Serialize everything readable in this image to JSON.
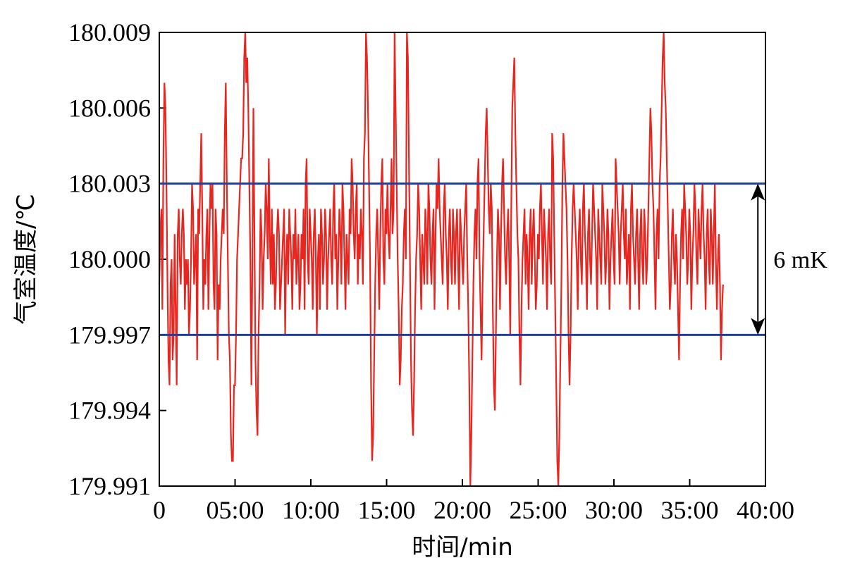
{
  "chart_data": {
    "type": "line",
    "title": "",
    "xlabel": "时间/min",
    "ylabel": "气室温度/℃",
    "xlim": [
      0,
      40
    ],
    "ylim": [
      179.991,
      180.009
    ],
    "x_ticks": [
      0,
      5,
      10,
      15,
      20,
      25,
      30,
      35,
      40
    ],
    "x_tick_labels": [
      "0",
      "05:00",
      "10:00",
      "15:00",
      "20:00",
      "25:00",
      "30:00",
      "35:00",
      "40:00"
    ],
    "y_ticks": [
      179.991,
      179.994,
      179.997,
      180.0,
      180.003,
      180.006,
      180.009
    ],
    "y_tick_labels": [
      "179.991",
      "179.994",
      "179.997",
      "180.000",
      "180.003",
      "180.006",
      "180.009"
    ],
    "grid": false,
    "series": [
      {
        "color": "#e8251f",
        "x_start": 0,
        "x_end": 37.2,
        "values": [
          179.999,
          180.001,
          180.002,
          179.998,
          180.004,
          180.007,
          180.006,
          180.003,
          179.999,
          179.996,
          179.995,
          179.999,
          180.0,
          179.996,
          179.997,
          180.001,
          179.998,
          179.995,
          180.001,
          180.002,
          180.0,
          179.999,
          180.001,
          180.002,
          180.001,
          179.998,
          180.0,
          179.999,
          180.0,
          179.997,
          179.998,
          180.0,
          180.003,
          180.002,
          179.999,
          180.0,
          180.001,
          179.996,
          180.002,
          180.001,
          180.003,
          180.005,
          180.002,
          179.998,
          180.0,
          179.999,
          180.001,
          180.002,
          179.998,
          180.001,
          180.003,
          180.002,
          180.003,
          179.999,
          179.998,
          180.002,
          180.001,
          179.996,
          179.999,
          179.998,
          180.0,
          180.001,
          180.002,
          180.001,
          180.005,
          180.007,
          180.003,
          180.0,
          179.997,
          179.996,
          179.993,
          179.992,
          179.992,
          179.995,
          179.995,
          179.997,
          180.0,
          180.001,
          180.002,
          180.003,
          180.004,
          180.004,
          180.005,
          180.008,
          180.009,
          180.007,
          180.008,
          180.006,
          180.003,
          180.0,
          179.995,
          180.0,
          180.006,
          180.001,
          179.996,
          179.994,
          179.993,
          179.997,
          179.999,
          180.002,
          180.001,
          179.998,
          180.0,
          180.001,
          180.003,
          180.002,
          180.0,
          180.004,
          180.001,
          179.999,
          180.002,
          179.999,
          180.001,
          179.998,
          179.999,
          180.001,
          180.002,
          180.001,
          179.998,
          179.999,
          180.0,
          180.001,
          180.002,
          179.997,
          180.0,
          180.001,
          179.999,
          180.002,
          180.001,
          180.0,
          179.998,
          180.001,
          180.0,
          180.002,
          179.999,
          180.0,
          180.001,
          179.998,
          179.999,
          180.001,
          180.0,
          180.002,
          179.998,
          180.003,
          180.004,
          180.0,
          179.999,
          180.002,
          180.001,
          180.0,
          179.998,
          180.001,
          180.002,
          180.0,
          179.997,
          180.0,
          180.001,
          179.998,
          180.002,
          180.001,
          179.999,
          180.0,
          180.002,
          180.001,
          179.998,
          180.0,
          180.001,
          180.002,
          180.0,
          179.999,
          180.002,
          180.003,
          180.0,
          180.001,
          179.998,
          180.0,
          180.002,
          180.001,
          179.999,
          180.003,
          180.002,
          180.0,
          179.998,
          180.001,
          180.0,
          179.999,
          180.002,
          180.001,
          180.004,
          180.003,
          180.001,
          180.0,
          180.002,
          180.003,
          179.999,
          180.001,
          180.0,
          180.002,
          180.001,
          179.999,
          180.004,
          180.005,
          180.009,
          180.008,
          180.006,
          180.003,
          180.0,
          179.995,
          179.992,
          179.993,
          179.996,
          179.999,
          180.001,
          180.002,
          180.0,
          179.998,
          180.001,
          180.003,
          180.004,
          180.0,
          179.999,
          180.002,
          180.001,
          180.003,
          180.001,
          180.0,
          180.002,
          180.004,
          180.001,
          180.002,
          180.009,
          180.006,
          180.003,
          180.0,
          179.998,
          179.995,
          179.996,
          179.998,
          179.999,
          180.001,
          180.002,
          180.0,
          180.009,
          180.008,
          180.004,
          180.0,
          179.996,
          179.994,
          179.993,
          179.995,
          179.998,
          180.0,
          180.001,
          180.003,
          180.002,
          180.0,
          179.998,
          180.001,
          180.0,
          179.999,
          180.002,
          180.001,
          179.999,
          180.003,
          180.002,
          180.0,
          179.999,
          180.001,
          180.002,
          179.998,
          180.001,
          180.003,
          180.002,
          180.004,
          180.002,
          180.001,
          180.0,
          179.999,
          180.002,
          180.003,
          180.001,
          180.0,
          179.998,
          180.001,
          180.002,
          180.0,
          179.999,
          180.002,
          180.001,
          179.999,
          180.001,
          180.002,
          180.0,
          179.998,
          180.002,
          180.001,
          180.0,
          179.999,
          180.001,
          180.002,
          180.003,
          180.0,
          179.998,
          179.995,
          179.991,
          179.993,
          179.996,
          179.999,
          180.001,
          180.002,
          180.0,
          180.003,
          180.004,
          180.0,
          179.998,
          179.996,
          179.999,
          180.001,
          180.003,
          180.005,
          180.006,
          180.004,
          180.002,
          180.001,
          180.003,
          180.002,
          179.998,
          179.995,
          179.994,
          179.997,
          180.0,
          180.002,
          180.001,
          179.998,
          180.001,
          180.003,
          180.004,
          180.002,
          180.0,
          179.999,
          180.001,
          180.002,
          180.0,
          179.997,
          180.002,
          180.006,
          180.007,
          180.008,
          180.005,
          180.003,
          180.001,
          180.0,
          179.997,
          179.995,
          179.998,
          180.0,
          180.001,
          180.002,
          179.999,
          180.001,
          180.0,
          179.998,
          180.001,
          180.002,
          179.999,
          180.001,
          180.002,
          180.0,
          179.998,
          179.999,
          180.001,
          180.0,
          180.002,
          180.003,
          180.001,
          179.999,
          180.002,
          180.001,
          180.0,
          179.998,
          180.001,
          180.002,
          180.0,
          179.999,
          180.005,
          180.004,
          180.001,
          179.998,
          179.995,
          179.992,
          179.991,
          179.993,
          179.996,
          179.999,
          180.003,
          180.005,
          180.004,
          180.003,
          180.002,
          180.0,
          179.997,
          179.995,
          179.997,
          180.0,
          180.002,
          180.003,
          180.002,
          180.001,
          180.0,
          179.998,
          180.001,
          180.002,
          180.0,
          179.999,
          180.002,
          180.003,
          180.001,
          180.0,
          179.998,
          180.001,
          180.002,
          180.0,
          179.999,
          180.001,
          180.003,
          180.002,
          180.001,
          180.0,
          179.998,
          180.002,
          180.001,
          180.0,
          179.999,
          180.003,
          180.002,
          180.001,
          179.999,
          180.0,
          180.002,
          180.001,
          179.998,
          180.0,
          180.001,
          180.002,
          180.0,
          179.999,
          180.004,
          180.003,
          180.002,
          180.001,
          179.999,
          180.001,
          180.002,
          180.003,
          180.001,
          180.0,
          180.002,
          179.999,
          180.0,
          180.001,
          179.998,
          180.002,
          180.003,
          180.001,
          180.0,
          179.999,
          180.001,
          180.002,
          180.0,
          179.998,
          180.001,
          180.002,
          180.0,
          179.999,
          180.002,
          180.001,
          179.999,
          180.0,
          180.002,
          180.004,
          180.006,
          180.005,
          180.003,
          180.002,
          180.0,
          179.998,
          180.001,
          180.002,
          180.0,
          180.003,
          180.004,
          180.006,
          180.008,
          180.009,
          180.007,
          180.006,
          180.004,
          180.002,
          180.0,
          179.998,
          179.999,
          180.001,
          180.002,
          180.0,
          179.999,
          180.001,
          180.0,
          179.998,
          179.996,
          179.999,
          180.001,
          180.002,
          180.0,
          180.003,
          180.002,
          180.001,
          179.999,
          180.0,
          180.002,
          180.001,
          179.998,
          180.0,
          180.001,
          180.003,
          180.002,
          180.0,
          179.999,
          180.002,
          180.001,
          180.0,
          180.002,
          180.003,
          180.001,
          180.0,
          179.998,
          180.001,
          180.002,
          180.0,
          179.999,
          180.002,
          180.001,
          179.999,
          180.001,
          180.003,
          180.0,
          179.998,
          180.0,
          180.001,
          179.999,
          179.996,
          179.998,
          179.999
        ]
      }
    ],
    "reference_lines": [
      {
        "axis": "y",
        "value": 180.003,
        "color": "#1f3f99"
      },
      {
        "axis": "y",
        "value": 179.997,
        "color": "#1f3f99"
      }
    ],
    "annotations": [
      {
        "text": "6 mK",
        "type": "double-arrow",
        "x": 39.5,
        "y_from": 179.997,
        "y_to": 180.003
      }
    ]
  }
}
